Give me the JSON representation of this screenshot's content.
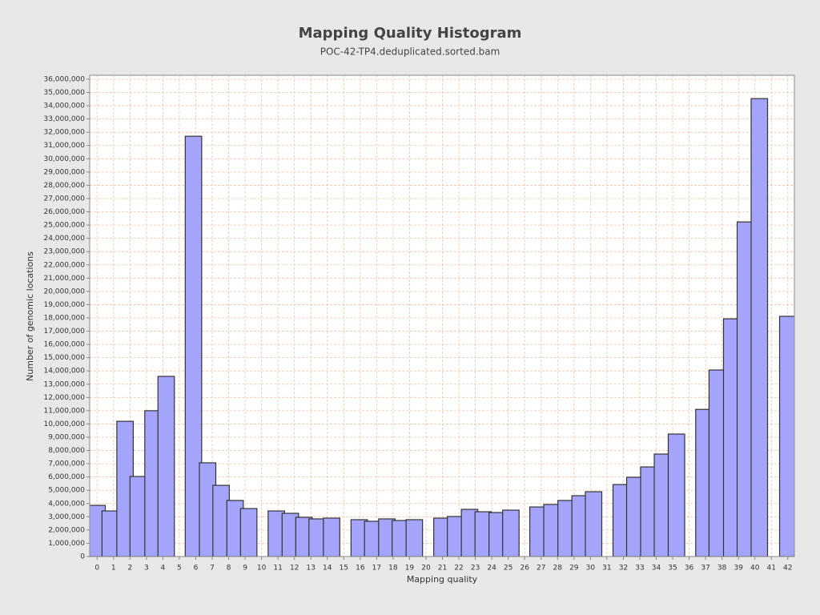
{
  "chart_data": {
    "type": "bar",
    "title": "Mapping Quality Histogram",
    "subtitle": "POC-42-TP4.deduplicated.sorted.bam",
    "x_label": "Mapping quality",
    "y_label": "Number of genomic locations",
    "color": "#a4a4fb",
    "grid": true,
    "x": [
      0.0,
      0.8,
      1.7,
      2.5,
      3.4,
      4.2,
      5.86,
      6.72,
      7.54,
      8.39,
      9.22,
      10.9,
      11.75,
      12.58,
      13.38,
      14.26,
      15.94,
      16.76,
      17.62,
      18.44,
      19.29,
      20.97,
      21.8,
      22.65,
      23.48,
      24.33,
      25.16,
      26.81,
      27.66,
      28.52,
      29.37,
      30.19,
      31.87,
      32.7,
      33.55,
      34.38,
      35.23,
      36.9,
      37.71,
      38.59,
      39.42,
      40.27,
      42.0
    ],
    "values": [
      3860000,
      3440000,
      10200000,
      6040000,
      11000000,
      13590000,
      31700000,
      7070000,
      5370000,
      4230000,
      3620000,
      3440000,
      3260000,
      2960000,
      2840000,
      2900000,
      2780000,
      2660000,
      2840000,
      2720000,
      2780000,
      2900000,
      3020000,
      3560000,
      3380000,
      3320000,
      3500000,
      3740000,
      3930000,
      4230000,
      4590000,
      4890000,
      5430000,
      5980000,
      6760000,
      7730000,
      9240000,
      11100000,
      14070000,
      17930000,
      25240000,
      34540000,
      18120000
    ],
    "xlim": [
      -0.45,
      42.4
    ],
    "ylim": [
      0,
      36300000
    ],
    "xticks": [
      0,
      1,
      2,
      3,
      4,
      5,
      6,
      7,
      8,
      9,
      10,
      11,
      12,
      13,
      14,
      15,
      16,
      17,
      18,
      19,
      20,
      21,
      22,
      23,
      24,
      25,
      26,
      27,
      28,
      29,
      30,
      31,
      32,
      33,
      34,
      35,
      36,
      37,
      38,
      39,
      40,
      41,
      42
    ],
    "yticks": [
      0,
      {
        "value": 1000000,
        "label": "1,000,000"
      },
      {
        "value": 2000000,
        "label": "2,000,000"
      },
      {
        "value": 3000000,
        "label": "3,000,000"
      },
      {
        "value": 4000000,
        "label": "4,000,000"
      },
      {
        "value": 5000000,
        "label": "5,000,000"
      },
      {
        "value": 6000000,
        "label": "6,000,000"
      },
      {
        "value": 7000000,
        "label": "7,000,000"
      },
      {
        "value": 8000000,
        "label": "8,000,000"
      },
      {
        "value": 9000000,
        "label": "9,000,000"
      },
      {
        "value": 10000000,
        "label": "10,000,000"
      },
      {
        "value": 11000000,
        "label": "11,000,000"
      },
      {
        "value": 12000000,
        "label": "12,000,000"
      },
      {
        "value": 13000000,
        "label": "13,000,000"
      },
      {
        "value": 14000000,
        "label": "14,000,000"
      },
      {
        "value": 15000000,
        "label": "15,000,000"
      },
      {
        "value": 16000000,
        "label": "16,000,000"
      },
      {
        "value": 17000000,
        "label": "17,000,000"
      },
      {
        "value": 18000000,
        "label": "18,000,000"
      },
      {
        "value": 19000000,
        "label": "19,000,000"
      },
      {
        "value": 20000000,
        "label": "20,000,000"
      },
      {
        "value": 21000000,
        "label": "21,000,000"
      },
      {
        "value": 22000000,
        "label": "22,000,000"
      },
      {
        "value": 23000000,
        "label": "23,000,000"
      },
      {
        "value": 24000000,
        "label": "24,000,000"
      },
      {
        "value": 25000000,
        "label": "25,000,000"
      },
      {
        "value": 26000000,
        "label": "26,000,000"
      },
      {
        "value": 27000000,
        "label": "27,000,000"
      },
      {
        "value": 28000000,
        "label": "28,000,000"
      },
      {
        "value": 29000000,
        "label": "29,000,000"
      },
      {
        "value": 30000000,
        "label": "30,000,000"
      },
      {
        "value": 31000000,
        "label": "31,000,000"
      },
      {
        "value": 32000000,
        "label": "32,000,000"
      },
      {
        "value": 33000000,
        "label": "33,000,000"
      },
      {
        "value": 34000000,
        "label": "34,000,000"
      },
      {
        "value": 35000000,
        "label": "35,000,000"
      },
      {
        "value": 36000000,
        "label": "36,000,000"
      }
    ]
  }
}
